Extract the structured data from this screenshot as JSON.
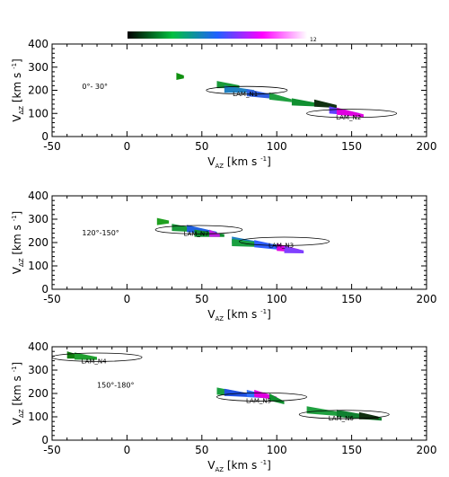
{
  "colorbar": {
    "min_label": "",
    "max_label": "12",
    "stops": [
      "#000000",
      "#00c040",
      "#2060ff",
      "#ff00ff",
      "#ffffff"
    ]
  },
  "chart_data": [
    {
      "type": "scatter",
      "title": "",
      "panel_label": "0°- 30°",
      "xlabel": {
        "main": "V",
        "sub": "AZ",
        "unit": "[km s",
        "sup": "-1",
        "close": "]"
      },
      "ylabel": {
        "main": "V",
        "sub": "ΔZ",
        "unit": "[km s",
        "sup": "-1",
        "close": "]"
      },
      "xlim": [
        -50,
        200
      ],
      "ylim": [
        0,
        400
      ],
      "xticks": [
        -50,
        0,
        50,
        100,
        150,
        200
      ],
      "yticks": [
        0,
        100,
        200,
        300,
        400
      ],
      "regions": [
        {
          "label": "LAM_N1",
          "center": [
            80,
            200
          ],
          "radii": [
            27,
            28
          ]
        },
        {
          "label": "LAM_N2",
          "center": [
            150,
            100
          ],
          "radii": [
            30,
            30
          ]
        }
      ],
      "streaks": [
        {
          "x": [
            33,
            38
          ],
          "y": [
            260,
            258
          ],
          "color": "#109010"
        },
        {
          "x": [
            60,
            75
          ],
          "y": [
            225,
            215
          ],
          "color": "#1a9a3a"
        },
        {
          "x": [
            65,
            85
          ],
          "y": [
            205,
            195
          ],
          "color": "#2080c0"
        },
        {
          "x": [
            80,
            105
          ],
          "y": [
            190,
            165
          ],
          "color": "#3060e0"
        },
        {
          "x": [
            95,
            110
          ],
          "y": [
            175,
            155
          ],
          "color": "#20a040"
        },
        {
          "x": [
            110,
            130
          ],
          "y": [
            150,
            135
          ],
          "color": "#109030"
        },
        {
          "x": [
            125,
            140
          ],
          "y": [
            145,
            130
          ],
          "color": "#103010"
        },
        {
          "x": [
            135,
            155
          ],
          "y": [
            115,
            95
          ],
          "color": "#6040ff"
        },
        {
          "x": [
            140,
            158
          ],
          "y": [
            110,
            90
          ],
          "color": "#e000e0"
        }
      ]
    },
    {
      "type": "scatter",
      "title": "",
      "panel_label": "120°-150°",
      "xlabel": {
        "main": "V",
        "sub": "AZ",
        "unit": "[km s",
        "sup": "-1",
        "close": "]"
      },
      "ylabel": {
        "main": "V",
        "sub": "ΔZ",
        "unit": "[km s",
        "sup": "-1",
        "close": "]"
      },
      "xlim": [
        -50,
        200
      ],
      "ylim": [
        0,
        400
      ],
      "xticks": [
        -50,
        0,
        50,
        100,
        150,
        200
      ],
      "yticks": [
        0,
        100,
        200,
        300,
        400
      ],
      "regions": [
        {
          "label": "LAM_N7",
          "center": [
            48,
            255
          ],
          "radii": [
            29,
            30
          ]
        },
        {
          "label": "LAM_N3",
          "center": [
            105,
            205
          ],
          "radii": [
            30,
            30
          ]
        }
      ],
      "streaks": [
        {
          "x": [
            20,
            28
          ],
          "y": [
            290,
            288
          ],
          "color": "#20a020"
        },
        {
          "x": [
            30,
            50
          ],
          "y": [
            265,
            250
          ],
          "color": "#1a9a3a"
        },
        {
          "x": [
            40,
            60
          ],
          "y": [
            260,
            240
          ],
          "color": "#2060e0"
        },
        {
          "x": [
            45,
            65
          ],
          "y": [
            240,
            230
          ],
          "color": "#109030"
        },
        {
          "x": [
            55,
            62
          ],
          "y": [
            240,
            230
          ],
          "color": "#c020e0"
        },
        {
          "x": [
            70,
            90
          ],
          "y": [
            210,
            195
          ],
          "color": "#2080c0"
        },
        {
          "x": [
            70,
            100
          ],
          "y": [
            200,
            185
          ],
          "color": "#1aa040"
        },
        {
          "x": [
            85,
            110
          ],
          "y": [
            195,
            170
          ],
          "color": "#3060ff"
        },
        {
          "x": [
            100,
            115
          ],
          "y": [
            180,
            165
          ],
          "color": "#e000e0"
        },
        {
          "x": [
            105,
            118
          ],
          "y": [
            170,
            160
          ],
          "color": "#8040ff"
        }
      ]
    },
    {
      "type": "scatter",
      "title": "",
      "panel_label": "150°-180°",
      "xlabel": {
        "main": "V",
        "sub": "AZ",
        "unit": "[km s",
        "sup": "-1",
        "close": "]"
      },
      "ylabel": {
        "main": "V",
        "sub": "ΔZ",
        "unit": "[km s",
        "sup": "-1",
        "close": "]"
      },
      "xlim": [
        -50,
        200
      ],
      "ylim": [
        0,
        400
      ],
      "xticks": [
        -50,
        0,
        50,
        100,
        150,
        200
      ],
      "yticks": [
        0,
        100,
        200,
        300,
        400
      ],
      "regions": [
        {
          "label": "LAM_N4",
          "center": [
            -20,
            355
          ],
          "radii": [
            30,
            30
          ]
        },
        {
          "label": "LAM_N5",
          "center": [
            90,
            185
          ],
          "radii": [
            30,
            30
          ]
        },
        {
          "label": "LAM_N6",
          "center": [
            145,
            110
          ],
          "radii": [
            30,
            30
          ]
        }
      ],
      "streaks": [
        {
          "x": [
            -40,
            -30
          ],
          "y": [
            365,
            355
          ],
          "color": "#108010"
        },
        {
          "x": [
            -35,
            -20
          ],
          "y": [
            360,
            350
          ],
          "color": "#20a030"
        },
        {
          "x": [
            60,
            80
          ],
          "y": [
            210,
            195
          ],
          "color": "#1aa040"
        },
        {
          "x": [
            65,
            85
          ],
          "y": [
            205,
            190
          ],
          "color": "#2050e0"
        },
        {
          "x": [
            80,
            95
          ],
          "y": [
            200,
            185
          ],
          "color": "#3070ff"
        },
        {
          "x": [
            85,
            100
          ],
          "y": [
            200,
            180
          ],
          "color": "#e000e0"
        },
        {
          "x": [
            95,
            105
          ],
          "y": [
            185,
            160
          ],
          "color": "#109030"
        },
        {
          "x": [
            120,
            150
          ],
          "y": [
            130,
            105
          ],
          "color": "#20a040"
        },
        {
          "x": [
            140,
            170
          ],
          "y": [
            115,
            90
          ],
          "color": "#108030"
        },
        {
          "x": [
            155,
            168
          ],
          "y": [
            105,
            95
          ],
          "color": "#103010"
        }
      ]
    }
  ]
}
